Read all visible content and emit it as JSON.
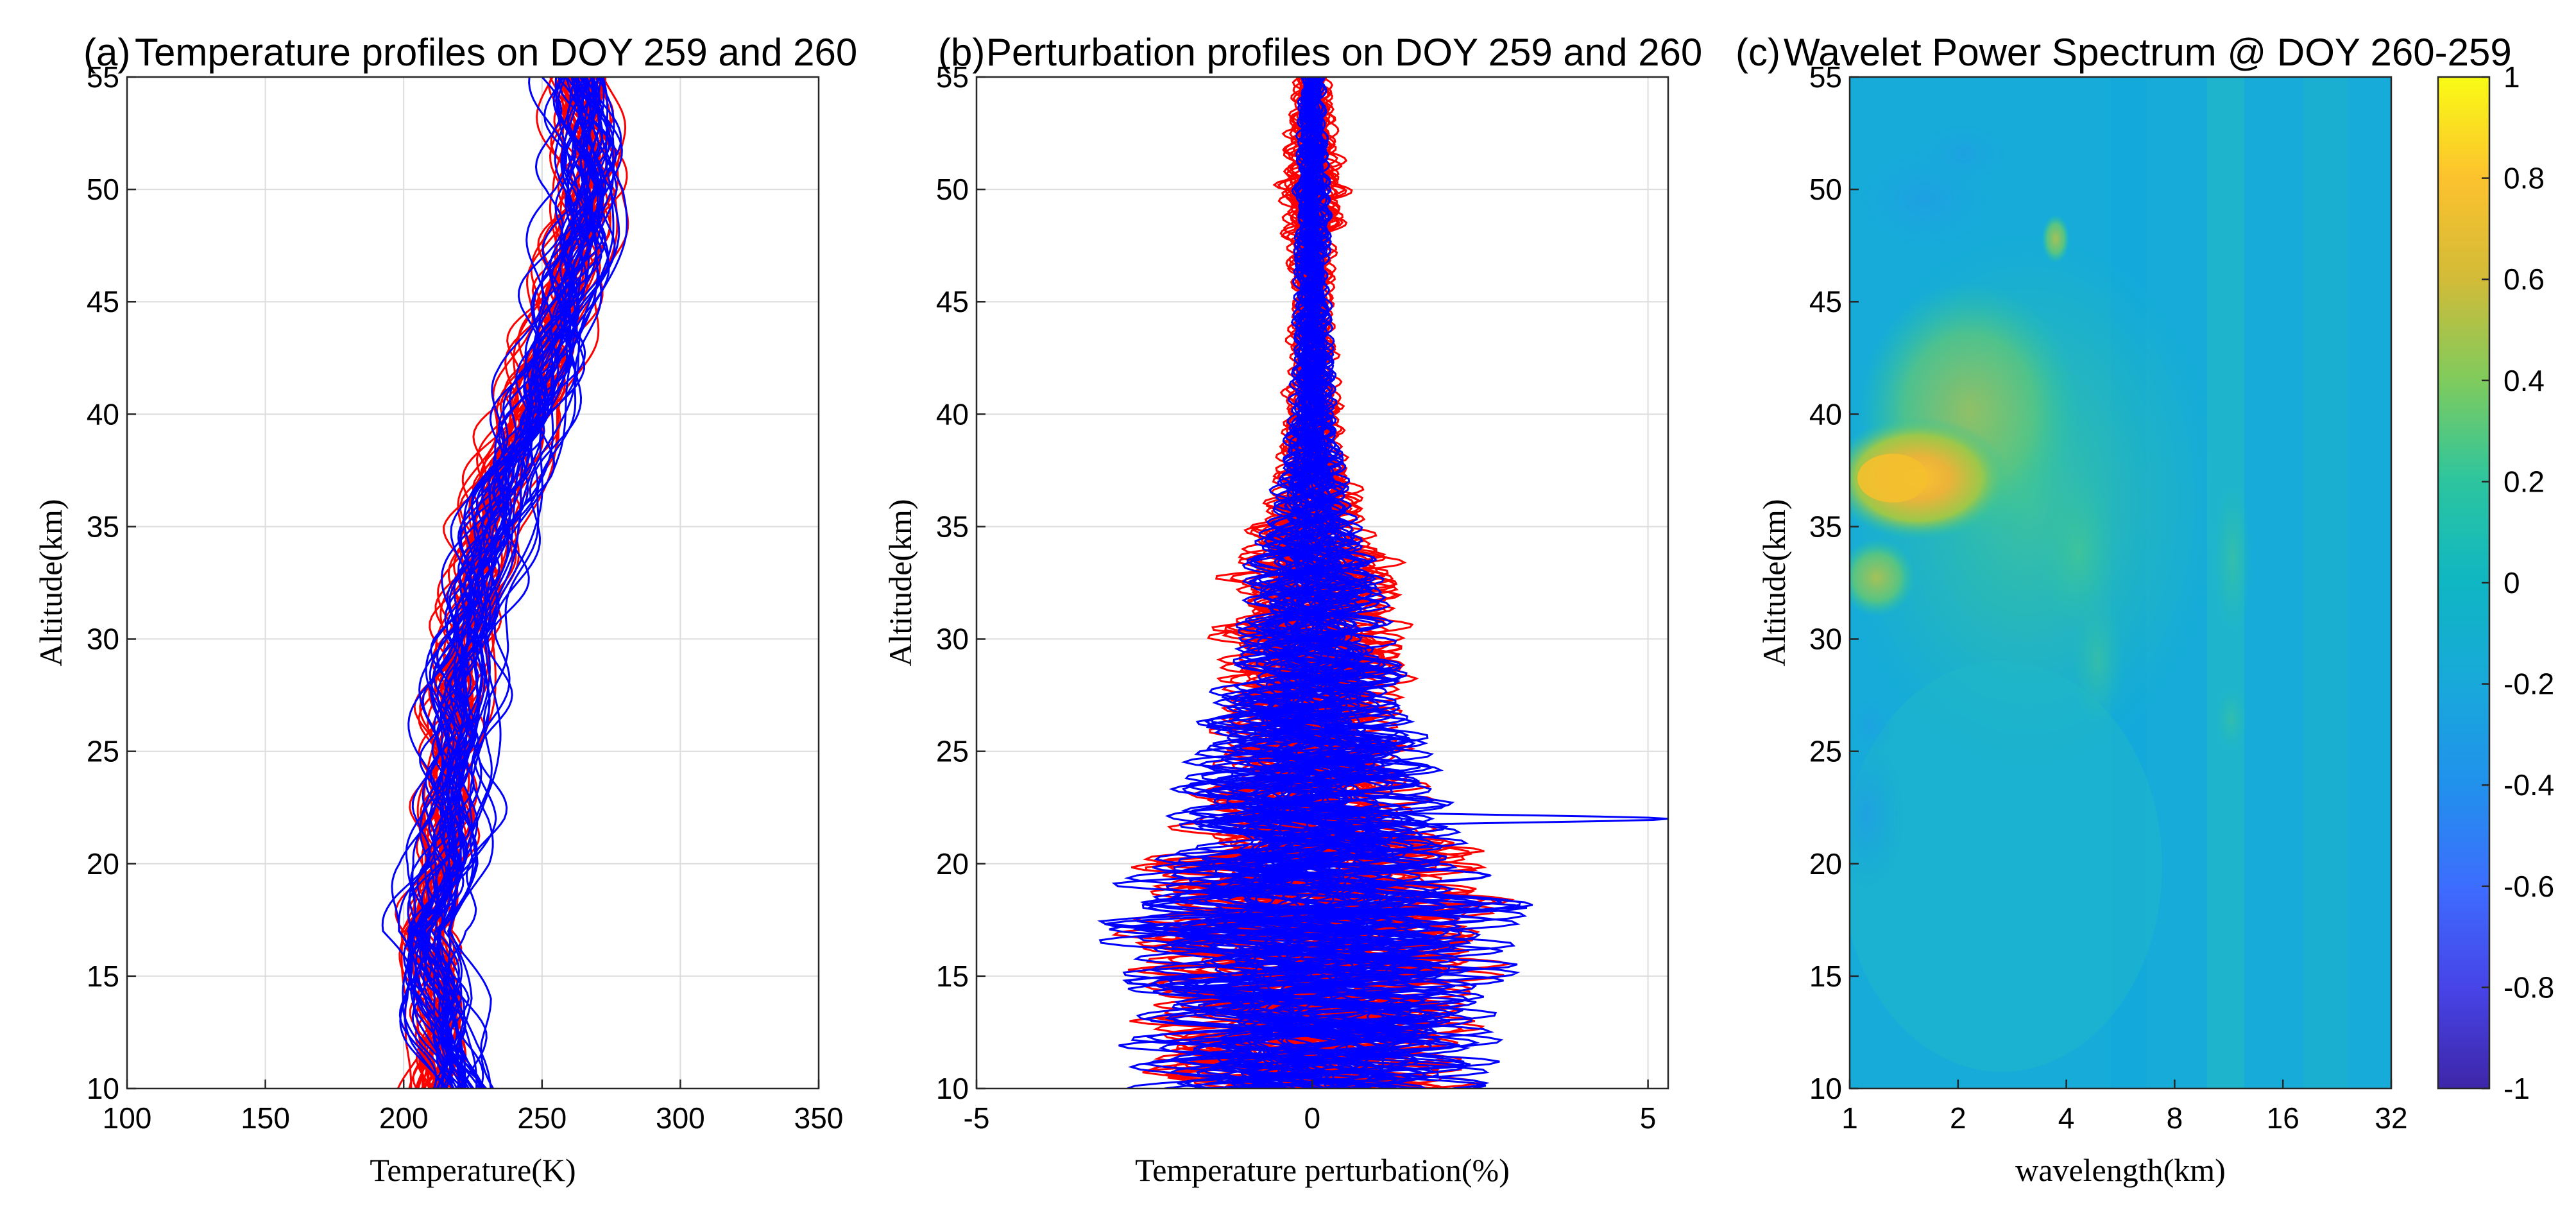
{
  "chart_data": [
    {
      "type": "line",
      "panel": "a",
      "panel_letter": "(a)",
      "title": "Temperature profiles on DOY 259 and 260",
      "xlabel": "Temperature(K)",
      "ylabel": "Altitude(km)",
      "xlim": [
        100,
        350
      ],
      "ylim": [
        10,
        55
      ],
      "xticks": [
        100,
        150,
        200,
        250,
        300,
        350
      ],
      "yticks": [
        10,
        15,
        20,
        25,
        30,
        35,
        40,
        45,
        50,
        55
      ],
      "grid": true,
      "series": [
        {
          "name": "DOY 259",
          "color": "#ff0000",
          "altitude": [
            10,
            12,
            14,
            16,
            17,
            18,
            20,
            22,
            25,
            28,
            30,
            32,
            35,
            38,
            40,
            42,
            45,
            48,
            50,
            52,
            55
          ],
          "mean_temperature": [
            212,
            212,
            214,
            210,
            208,
            210,
            214,
            216,
            216,
            219,
            222,
            226,
            230,
            238,
            244,
            250,
            257,
            264,
            268,
            266,
            264
          ]
        },
        {
          "name": "DOY 260",
          "color": "#0000ff",
          "altitude": [
            10,
            12,
            14,
            16,
            17,
            18,
            20,
            22,
            25,
            28,
            30,
            32,
            35,
            38,
            40,
            42,
            45,
            48,
            50,
            52,
            55
          ],
          "mean_temperature": [
            220,
            216,
            214,
            208,
            206,
            210,
            216,
            218,
            218,
            220,
            222,
            226,
            232,
            240,
            246,
            252,
            258,
            264,
            267,
            266,
            263
          ]
        }
      ]
    },
    {
      "type": "line",
      "panel": "b",
      "panel_letter": "(b)",
      "title": "Perturbation profiles on DOY 259 and 260",
      "xlabel": "Temperature perturbation(%)",
      "ylabel": "Altitude(km)",
      "xlim": [
        -5,
        5.3
      ],
      "ylim": [
        10,
        55
      ],
      "xticks": [
        -5,
        0,
        5
      ],
      "yticks": [
        10,
        15,
        20,
        25,
        30,
        35,
        40,
        45,
        50,
        55
      ],
      "grid": true,
      "series": [
        {
          "name": "DOY 259",
          "color": "#ff0000",
          "altitude": [
            10,
            12,
            14,
            16,
            18,
            20,
            22,
            25,
            28,
            30,
            33,
            35,
            38,
            40,
            45,
            50,
            55
          ],
          "envelope_pct": [
            2.6,
            2.8,
            2.8,
            3.0,
            3.2,
            3.0,
            2.0,
            1.6,
            1.6,
            1.6,
            1.5,
            1.0,
            0.6,
            0.5,
            0.35,
            0.6,
            0.3
          ]
        },
        {
          "name": "DOY 260",
          "color": "#0000ff",
          "altitude": [
            10,
            12,
            14,
            16,
            18,
            20,
            22,
            25,
            28,
            30,
            33,
            35,
            38,
            40,
            45,
            50,
            55
          ],
          "envelope_pct": [
            2.8,
            3.0,
            3.0,
            3.2,
            3.6,
            2.6,
            2.2,
            2.0,
            1.5,
            1.3,
            1.1,
            0.8,
            0.5,
            0.4,
            0.3,
            0.3,
            0.2
          ]
        }
      ]
    },
    {
      "type": "heatmap",
      "panel": "c",
      "panel_letter": "(c)",
      "title": "Wavelet Power Spectrum @ DOY 260-259",
      "xlabel": "wavelength(km)",
      "ylabel": "Altitude(km)",
      "xscale": "log2",
      "xlim": [
        1,
        32
      ],
      "ylim": [
        10,
        55
      ],
      "xticks": [
        1,
        2,
        4,
        8,
        16,
        32
      ],
      "yticks": [
        10,
        15,
        20,
        25,
        30,
        35,
        40,
        45,
        50,
        55
      ],
      "colorbar": {
        "range": [
          -1,
          1
        ],
        "ticks": [
          1,
          0.8,
          0.6,
          0.4,
          0.2,
          0,
          -0.2,
          -0.4,
          -0.6,
          -0.8,
          -1
        ]
      },
      "features": [
        {
          "wavelength_km": 1.4,
          "altitude_km": 37,
          "value": 0.6
        },
        {
          "wavelength_km": 1.1,
          "altitude_km": 32,
          "value": 0.3
        },
        {
          "wavelength_km": 2.2,
          "altitude_km": 40,
          "value": 0.2
        },
        {
          "wavelength_km": 1.6,
          "altitude_km": 50,
          "value": -0.1
        },
        {
          "wavelength_km": 1.2,
          "altitude_km": 22.5,
          "value": -0.15
        },
        {
          "wavelength_km": 6.0,
          "altitude_km": 32,
          "value": 0.15
        },
        {
          "wavelength_km": 20,
          "altitude_km": 35,
          "value": 0.1
        }
      ]
    }
  ]
}
